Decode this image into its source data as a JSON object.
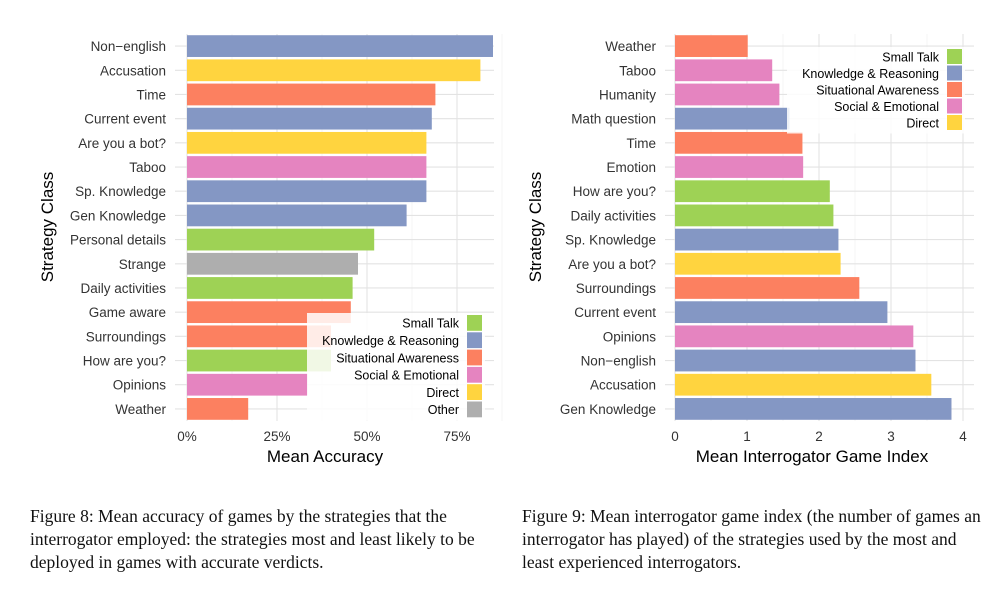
{
  "chart_data": [
    {
      "type": "bar",
      "orientation": "horizontal",
      "ylabel": "Strategy Class",
      "xlabel": "Mean Accuracy",
      "xlim": [
        0,
        0.9
      ],
      "x_ticks": [
        "0%",
        "25%",
        "50%",
        "75%"
      ],
      "x_tick_values": [
        0,
        0.25,
        0.5,
        0.75
      ],
      "grid": true,
      "legend_position": "bottom-right",
      "categories": [
        "Non−english",
        "Accusation",
        "Time",
        "Current event",
        "Are you a bot?",
        "Taboo",
        "Sp. Knowledge",
        "Gen Knowledge",
        "Personal details",
        "Strange",
        "Daily activities",
        "Game aware",
        "Surroundings",
        "How are you?",
        "Opinions",
        "Weather"
      ],
      "values": [
        0.85,
        0.815,
        0.69,
        0.68,
        0.665,
        0.665,
        0.665,
        0.61,
        0.52,
        0.475,
        0.46,
        0.455,
        0.4,
        0.4,
        0.335,
        0.17
      ],
      "groups": [
        "Knowledge & Reasoning",
        "Direct",
        "Situational Awareness",
        "Knowledge & Reasoning",
        "Direct",
        "Social & Emotional",
        "Knowledge & Reasoning",
        "Knowledge & Reasoning",
        "Small Talk",
        "Other",
        "Small Talk",
        "Situational Awareness",
        "Situational Awareness",
        "Small Talk",
        "Social & Emotional",
        "Situational Awareness"
      ],
      "legend": [
        {
          "name": "Small Talk",
          "color": "#9ED255"
        },
        {
          "name": "Knowledge & Reasoning",
          "color": "#8497C4"
        },
        {
          "name": "Situational Awareness",
          "color": "#FC8060"
        },
        {
          "name": "Social & Emotional",
          "color": "#E584C0"
        },
        {
          "name": "Direct",
          "color": "#FFD43F"
        },
        {
          "name": "Other",
          "color": "#AEAEAE"
        }
      ]
    },
    {
      "type": "bar",
      "orientation": "horizontal",
      "ylabel": "Strategy Class",
      "xlabel": "Mean Interrogator Game Index",
      "xlim": [
        0,
        4
      ],
      "x_ticks": [
        "0",
        "1",
        "2",
        "3",
        "4"
      ],
      "x_tick_values": [
        0,
        1,
        2,
        3,
        4
      ],
      "grid": true,
      "legend_position": "top-right",
      "categories": [
        "Weather",
        "Taboo",
        "Humanity",
        "Math question",
        "Time",
        "Emotion",
        "How are you?",
        "Daily activities",
        "Sp. Knowledge",
        "Are you a bot?",
        "Surroundings",
        "Current event",
        "Opinions",
        "Non−english",
        "Accusation",
        "Gen Knowledge"
      ],
      "values": [
        1.01,
        1.35,
        1.45,
        1.59,
        1.77,
        1.78,
        2.15,
        2.2,
        2.27,
        2.3,
        2.56,
        2.95,
        3.31,
        3.34,
        3.56,
        3.84
      ],
      "groups": [
        "Situational Awareness",
        "Social & Emotional",
        "Social & Emotional",
        "Knowledge & Reasoning",
        "Situational Awareness",
        "Social & Emotional",
        "Small Talk",
        "Small Talk",
        "Knowledge & Reasoning",
        "Direct",
        "Situational Awareness",
        "Knowledge & Reasoning",
        "Social & Emotional",
        "Knowledge & Reasoning",
        "Direct",
        "Knowledge & Reasoning"
      ],
      "legend": [
        {
          "name": "Small Talk",
          "color": "#9ED255"
        },
        {
          "name": "Knowledge & Reasoning",
          "color": "#8497C4"
        },
        {
          "name": "Situational Awareness",
          "color": "#FC8060"
        },
        {
          "name": "Social & Emotional",
          "color": "#E584C0"
        },
        {
          "name": "Direct",
          "color": "#FFD43F"
        }
      ]
    }
  ],
  "captions": {
    "figure8": "Figure 8: Mean accuracy of games by the strategies that the interrogator employed: the strategies most and least likely to be deployed in games with accurate verdicts.",
    "figure9": "Figure 9: Mean interrogator game index (the number of games an interrogator has played) of the strategies used by the most and least experienced interrogators."
  }
}
